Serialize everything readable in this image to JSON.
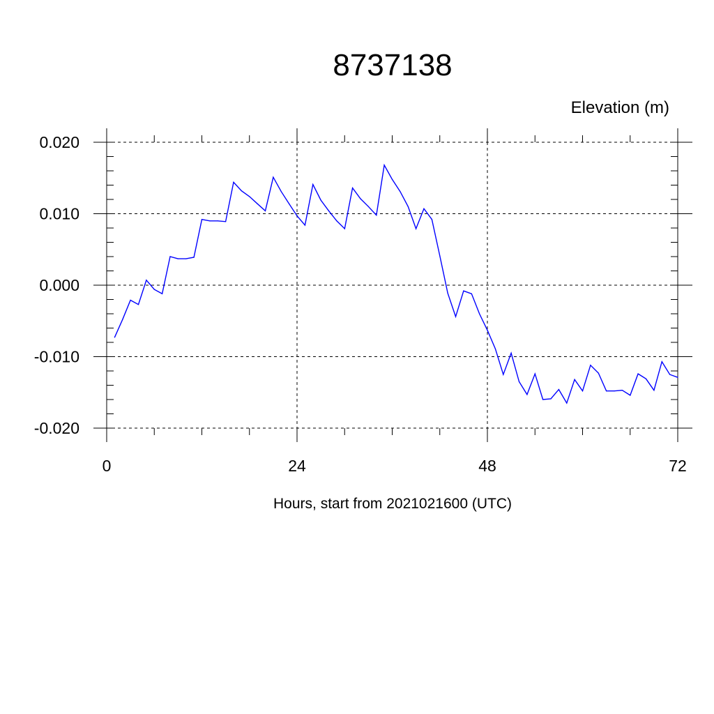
{
  "chart_data": {
    "type": "line",
    "title": "8737138",
    "ylabel": "Elevation (m)",
    "xlabel": "Hours, start from 2021021600 (UTC)",
    "xlim": [
      0,
      72
    ],
    "ylim": [
      -0.02,
      0.02
    ],
    "x_ticks": [
      0,
      24,
      48,
      72
    ],
    "x_tick_labels": [
      "0",
      "24",
      "48",
      "72"
    ],
    "x_minor_step": 6,
    "y_ticks": [
      0.02,
      0.01,
      0.0,
      -0.01,
      -0.02
    ],
    "y_tick_labels": [
      "0.020",
      "0.010",
      "0.000",
      "-0.010",
      "-0.020"
    ],
    "y_minor_step": 0.002,
    "grid": true,
    "line_color": "#0000ff",
    "x": [
      1,
      2,
      3,
      4,
      5,
      6,
      7,
      8,
      9,
      10,
      11,
      12,
      13,
      14,
      15,
      16,
      17,
      18,
      19,
      20,
      21,
      22,
      23,
      24,
      25,
      26,
      27,
      28,
      29,
      30,
      31,
      32,
      33,
      34,
      35,
      36,
      37,
      38,
      39,
      40,
      41,
      42,
      43,
      44,
      45,
      46,
      47,
      48,
      49,
      50,
      51,
      52,
      53,
      54,
      55,
      56,
      57,
      58,
      59,
      60,
      61,
      62,
      63,
      64,
      65,
      66,
      67,
      68,
      69,
      70,
      71,
      72
    ],
    "values": [
      -0.0073,
      -0.0048,
      -0.0021,
      -0.0027,
      0.0007,
      -0.0006,
      -0.0012,
      0.004,
      0.0037,
      0.0037,
      0.0039,
      0.0092,
      0.009,
      0.009,
      0.0089,
      0.0144,
      0.0132,
      0.0124,
      0.0114,
      0.0104,
      0.0151,
      0.0131,
      0.0114,
      0.0097,
      0.0084,
      0.0141,
      0.0119,
      0.0104,
      0.009,
      0.0079,
      0.0136,
      0.0121,
      0.011,
      0.0098,
      0.0168,
      0.0148,
      0.0131,
      0.011,
      0.0079,
      0.0107,
      0.0092,
      0.0041,
      -0.0011,
      -0.0044,
      -0.0008,
      -0.0012,
      -0.004,
      -0.0063,
      -0.0089,
      -0.0125,
      -0.0095,
      -0.0135,
      -0.0153,
      -0.0124,
      -0.016,
      -0.0159,
      -0.0146,
      -0.0165,
      -0.0132,
      -0.0148,
      -0.0112,
      -0.0123,
      -0.0148,
      -0.0148,
      -0.0147,
      -0.0154,
      -0.0124,
      -0.0131,
      -0.0147,
      -0.0107,
      -0.0125,
      -0.0129
    ]
  }
}
